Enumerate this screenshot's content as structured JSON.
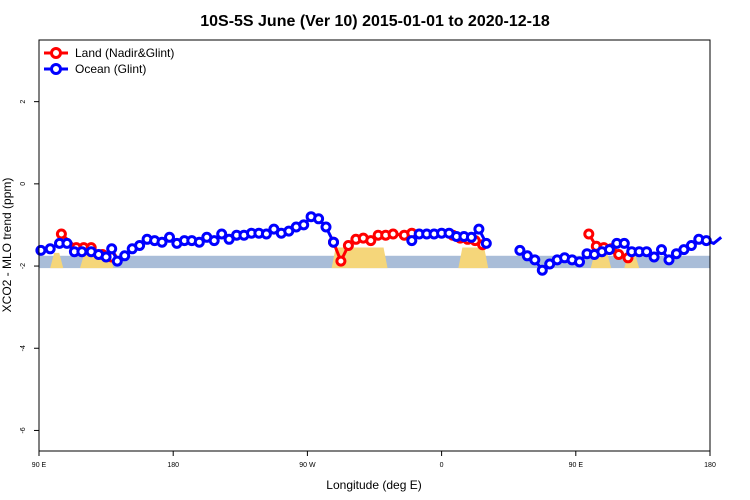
{
  "chart_data": {
    "type": "line",
    "title": "10S-5S June (Ver 10)   2015-01-01 to 2020-12-18",
    "xlabel": "Longitude (deg E)",
    "ylabel": "XCO2 - MLO trend (ppm)",
    "xlim": [
      90,
      450
    ],
    "ylim": [
      -6.5,
      3.5
    ],
    "x_ticks": [
      {
        "value": 90,
        "label": "90 E"
      },
      {
        "value": 162,
        "label": "180"
      },
      {
        "value": 234,
        "label": "90 W"
      },
      {
        "value": 306,
        "label": "0"
      },
      {
        "value": 378,
        "label": "90 E"
      },
      {
        "value": 450,
        "label": "180"
      }
    ],
    "y_ticks": [
      {
        "value": 2,
        "label": "2"
      },
      {
        "value": 0,
        "label": "0"
      },
      {
        "value": -2,
        "label": "-2"
      },
      {
        "value": -4,
        "label": "-4"
      },
      {
        "value": -6,
        "label": "-6"
      }
    ],
    "legend_position": "top-left",
    "grid": false,
    "colors": {
      "land": "#ff0000",
      "ocean": "#0000ff",
      "map_ocean": "#a9bdd8",
      "map_land": "#f5d67a"
    },
    "series": [
      {
        "name": "Land (Nadir&Glint)",
        "color": "#ff0000",
        "points": [
          [
            102,
            -1.22
          ],
          [
            110,
            -1.55
          ],
          [
            114,
            -1.55
          ],
          [
            118,
            -1.55
          ],
          [
            124,
            -1.72
          ],
          [
            129,
            -1.78
          ],
          [
            248,
            -1.42
          ],
          [
            252,
            -1.88
          ],
          [
            256,
            -1.5
          ],
          [
            260,
            -1.35
          ],
          [
            264,
            -1.32
          ],
          [
            268,
            -1.38
          ],
          [
            272,
            -1.25
          ],
          [
            276,
            -1.25
          ],
          [
            280,
            -1.22
          ],
          [
            286,
            -1.25
          ],
          [
            290,
            -1.2
          ],
          [
            312,
            -1.25
          ],
          [
            316,
            -1.32
          ],
          [
            320,
            -1.35
          ],
          [
            324,
            -1.38
          ],
          [
            328,
            -1.48
          ],
          [
            385,
            -1.22
          ],
          [
            389,
            -1.52
          ],
          [
            393,
            -1.55
          ],
          [
            397,
            -1.58
          ],
          [
            401,
            -1.72
          ],
          [
            406,
            -1.8
          ]
        ]
      },
      {
        "name": "Ocean (Glint)",
        "color": "#0000ff",
        "points": [
          [
            91,
            -1.62
          ],
          [
            96,
            -1.58
          ],
          [
            101,
            -1.45
          ],
          [
            105,
            -1.45
          ],
          [
            109,
            -1.65
          ],
          [
            113,
            -1.65
          ],
          [
            118,
            -1.65
          ],
          [
            122,
            -1.72
          ],
          [
            126,
            -1.78
          ],
          [
            129,
            -1.58
          ],
          [
            132,
            -1.88
          ],
          [
            136,
            -1.75
          ],
          [
            140,
            -1.58
          ],
          [
            144,
            -1.5
          ],
          [
            148,
            -1.35
          ],
          [
            152,
            -1.38
          ],
          [
            156,
            -1.42
          ],
          [
            160,
            -1.3
          ],
          [
            164,
            -1.45
          ],
          [
            168,
            -1.38
          ],
          [
            172,
            -1.38
          ],
          [
            176,
            -1.42
          ],
          [
            180,
            -1.3
          ],
          [
            184,
            -1.38
          ],
          [
            188,
            -1.22
          ],
          [
            192,
            -1.35
          ],
          [
            196,
            -1.25
          ],
          [
            200,
            -1.25
          ],
          [
            204,
            -1.2
          ],
          [
            208,
            -1.2
          ],
          [
            212,
            -1.22
          ],
          [
            216,
            -1.1
          ],
          [
            220,
            -1.2
          ],
          [
            224,
            -1.15
          ],
          [
            228,
            -1.05
          ],
          [
            232,
            -1.0
          ],
          [
            236,
            -0.8
          ],
          [
            240,
            -0.85
          ],
          [
            244,
            -1.05
          ],
          [
            248,
            -1.42
          ],
          [
            290,
            -1.38
          ],
          [
            294,
            -1.22
          ],
          [
            298,
            -1.22
          ],
          [
            302,
            -1.22
          ],
          [
            306,
            -1.2
          ],
          [
            310,
            -1.2
          ],
          [
            314,
            -1.28
          ],
          [
            318,
            -1.28
          ],
          [
            322,
            -1.3
          ],
          [
            326,
            -1.1
          ],
          [
            330,
            -1.45
          ],
          [
            348,
            -1.62
          ],
          [
            352,
            -1.75
          ],
          [
            356,
            -1.85
          ],
          [
            360,
            -2.1
          ],
          [
            364,
            -1.95
          ],
          [
            368,
            -1.85
          ],
          [
            372,
            -1.8
          ],
          [
            376,
            -1.85
          ],
          [
            380,
            -1.9
          ],
          [
            384,
            -1.7
          ],
          [
            388,
            -1.72
          ],
          [
            392,
            -1.65
          ],
          [
            396,
            -1.6
          ],
          [
            400,
            -1.45
          ],
          [
            404,
            -1.45
          ],
          [
            408,
            -1.65
          ],
          [
            412,
            -1.65
          ],
          [
            416,
            -1.65
          ],
          [
            420,
            -1.78
          ],
          [
            424,
            -1.6
          ],
          [
            428,
            -1.85
          ],
          [
            432,
            -1.7
          ],
          [
            436,
            -1.6
          ],
          [
            440,
            -1.5
          ],
          [
            444,
            -1.35
          ],
          [
            448,
            -1.38
          ],
          [
            452,
            -1.45
          ],
          [
            456,
            -1.3
          ]
        ]
      }
    ]
  }
}
